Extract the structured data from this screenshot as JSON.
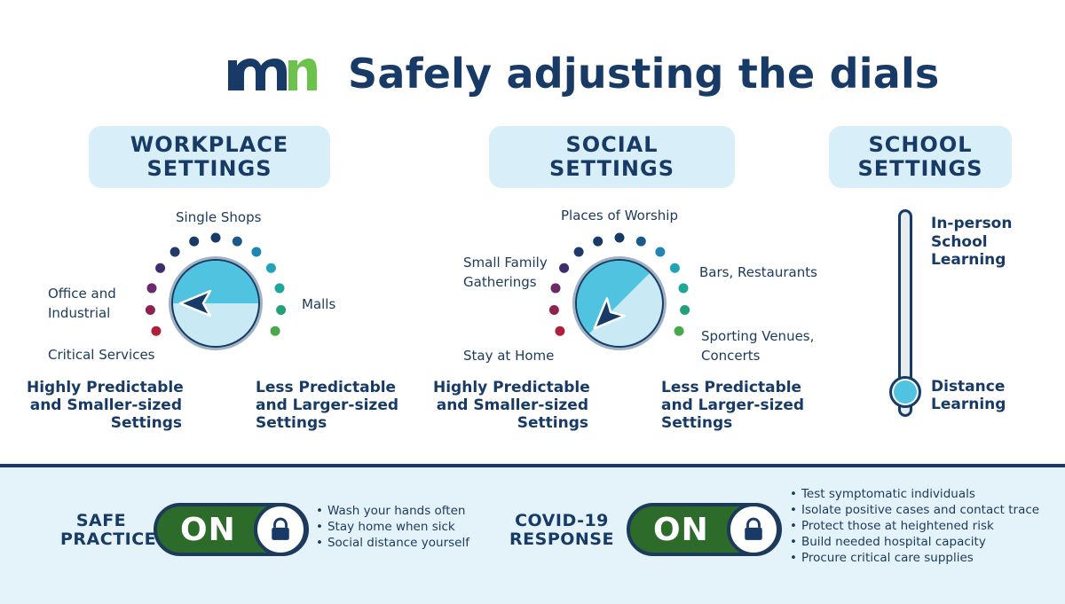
{
  "header": {
    "logo_text": "mn",
    "title": "Safely adjusting the dials"
  },
  "workplace": {
    "heading_line1": "WORKPLACE",
    "heading_line2": "SETTINGS",
    "labels": {
      "single_shops": "Single Shops",
      "office_industrial_line1": "Office and",
      "office_industrial_line2": "Industrial",
      "malls": "Malls",
      "critical_services": "Critical Services"
    },
    "caption_left": [
      "Highly Predictable",
      "and Smaller-sized",
      "Settings"
    ],
    "caption_right": [
      "Less Predictable",
      "and Larger-sized",
      "Settings"
    ]
  },
  "social": {
    "heading_line1": "SOCIAL",
    "heading_line2": "SETTINGS",
    "labels": {
      "places_of_worship": "Places of Worship",
      "small_family_line1": "Small Family",
      "small_family_line2": "Gatherings",
      "bars_restaurants": "Bars, Restaurants",
      "stay_at_home": "Stay at Home",
      "sporting_line1": "Sporting Venues,",
      "sporting_line2": "Concerts"
    },
    "caption_left": [
      "Highly Predictable",
      "and Smaller-sized",
      "Settings"
    ],
    "caption_right": [
      "Less Predictable",
      "and Larger-sized",
      "Settings"
    ]
  },
  "school": {
    "heading_line1": "SCHOOL",
    "heading_line2": "SETTINGS",
    "top_label": [
      "In-person",
      "School",
      "Learning"
    ],
    "bottom_label": [
      "Distance",
      "Learning"
    ],
    "slider_level": 0.0
  },
  "safe_practices": {
    "label_line1": "SAFE",
    "label_line2": "PRACTICES",
    "toggle_label": "ON",
    "items": [
      "Wash your hands often",
      "Stay home when sick",
      "Social distance yourself"
    ]
  },
  "covid_response": {
    "label_line1": "COVID-19",
    "label_line2": "RESPONSE",
    "toggle_label": "ON",
    "items": [
      "Test symptomatic individuals",
      "Isolate positive cases and contact trace",
      "Protect those at heightened risk",
      "Build needed hospital capacity",
      "Procure critical care supplies"
    ]
  },
  "colors": {
    "navy": "#173a66",
    "light_blue": "#d8eef8",
    "dial_blue": "#4fc3e0",
    "dial_light": "#c9e9f5",
    "toggle_green": "#2d6b2b",
    "logo_green": "#6cc24a"
  }
}
